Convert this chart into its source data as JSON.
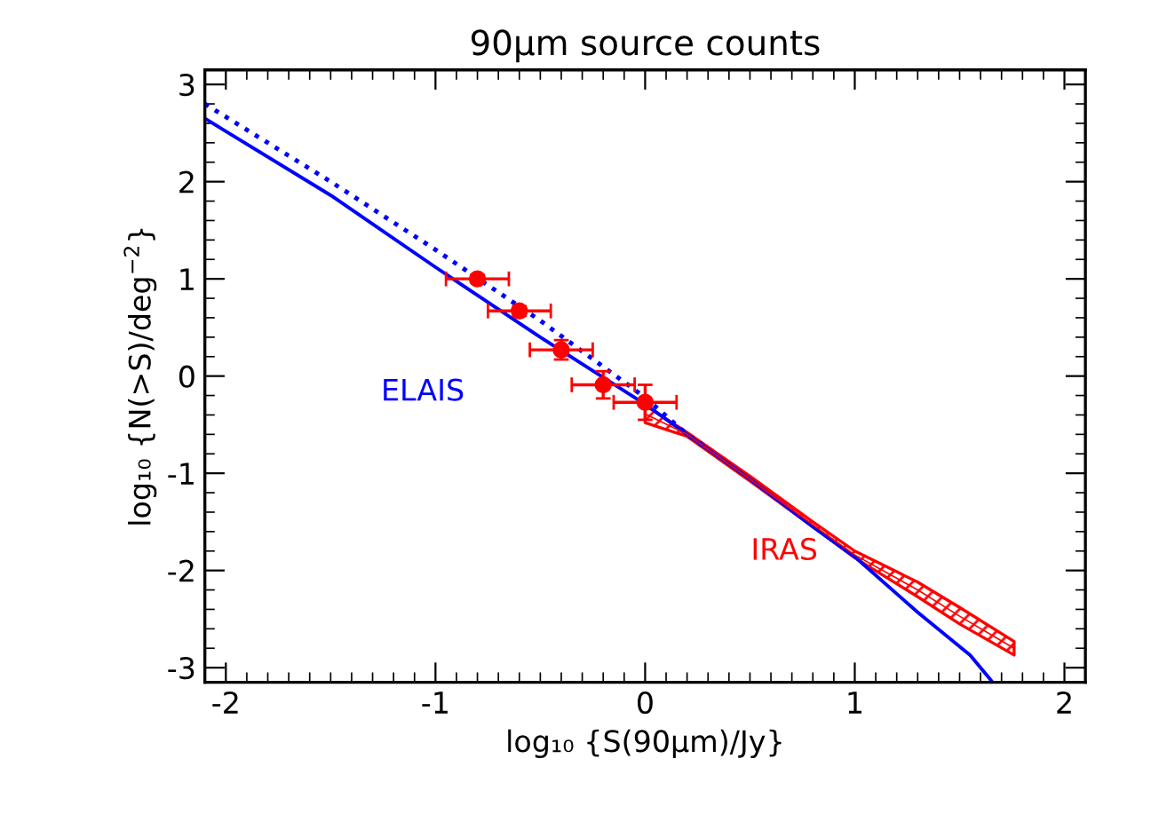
{
  "chart_data": {
    "type": "line",
    "title": "90μm source counts",
    "xlabel": "log₁₀ {S(90μm)/Jy}",
    "ylabel": "log₁₀ {N(>S)/deg$^{−2}$}",
    "xlim": [
      -2.1,
      2.1
    ],
    "ylim": [
      -3.15,
      3.15
    ],
    "xticks": [
      -2,
      -1,
      0,
      1,
      2
    ],
    "yticks": [
      -3,
      -2,
      -1,
      0,
      1,
      2,
      3
    ],
    "grid": false,
    "legend": false,
    "series": [
      {
        "name": "ELAIS",
        "color": "#0000ff",
        "line_style": "solid",
        "x": [
          -2.1,
          -1.5,
          -1.0,
          -0.5,
          0,
          0.2,
          0.5,
          0.8,
          1.0,
          1.3,
          1.55,
          1.65
        ],
        "values": [
          2.65,
          1.86,
          1.12,
          0.4,
          -0.29,
          -0.6,
          -1.06,
          -1.55,
          -1.86,
          -2.43,
          -2.87,
          -3.13
        ]
      },
      {
        "type": "line",
        "color": "#0000ff",
        "line_style": "dotted",
        "x": [
          -2.1,
          -1.5,
          -1.0,
          -0.5,
          0,
          0.2,
          0.3
        ],
        "values": [
          2.8,
          2.0,
          1.3,
          0.57,
          -0.22,
          -0.6,
          -0.75
        ]
      },
      {
        "name": "IRAS",
        "type": "line",
        "color": "#ff0000",
        "x": [
          0,
          0.2,
          0.5,
          0.8,
          1.0,
          1.3,
          1.5,
          1.76
        ],
        "values": [
          -0.39,
          -0.6,
          -1.06,
          -1.53,
          -1.84,
          -2.2,
          -2.47,
          -2.8
        ],
        "lower": [
          -0.48,
          -0.62,
          -1.08,
          -1.55,
          -1.87,
          -2.27,
          -2.55,
          -2.87
        ],
        "upper": [
          -0.3,
          -0.58,
          -1.03,
          -1.5,
          -1.8,
          -2.12,
          -2.38,
          -2.73
        ]
      },
      {
        "type": "scatter",
        "color": "#ff0000",
        "marker": "circle",
        "x": [
          -0.8,
          -0.6,
          -0.4,
          -0.2,
          0
        ],
        "values": [
          1.0,
          0.67,
          0.27,
          -0.09,
          -0.27
        ],
        "xerrors": [
          0.15,
          0.15,
          0.15,
          0.15,
          0.15
        ],
        "errors": [
          0.04,
          0.05,
          0.1,
          0.14,
          0.18
        ]
      }
    ]
  }
}
